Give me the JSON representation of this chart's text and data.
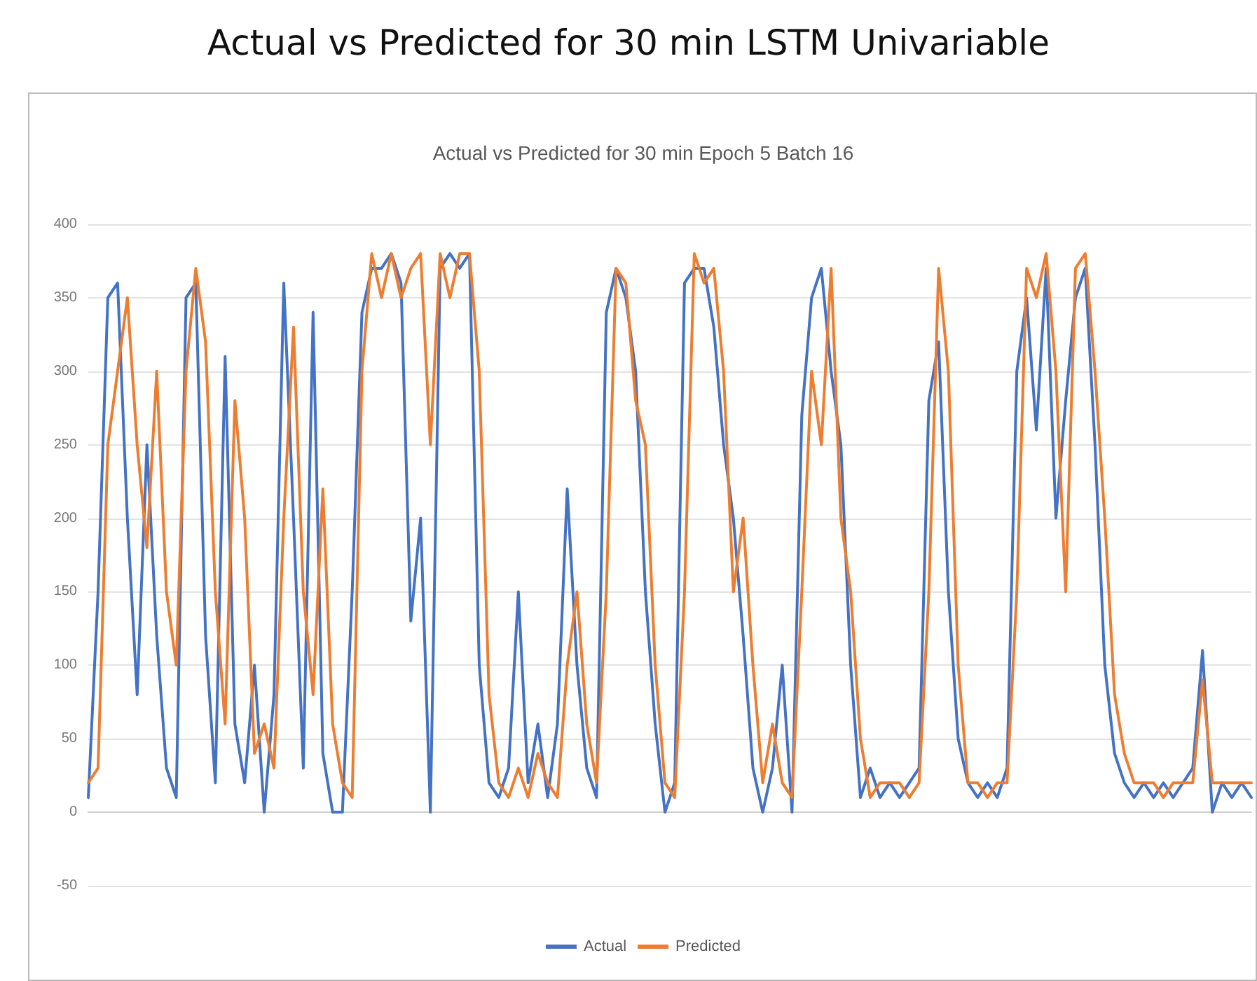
{
  "chart_data": {
    "type": "line",
    "title": "Actual vs Predicted for 30 min LSTM Univariable",
    "subtitle": "Actual vs Predicted for 30 min Epoch 5 Batch 16",
    "categories": [
      null,
      null,
      null,
      null,
      null,
      null,
      null,
      null,
      null,
      null,
      null,
      null,
      null,
      null,
      null,
      null,
      null,
      null,
      null,
      null,
      null,
      null,
      null,
      null,
      null,
      null,
      null,
      null,
      null,
      null,
      null,
      null,
      null,
      null,
      null,
      null,
      null,
      null,
      null,
      null,
      null,
      null,
      null,
      null,
      null,
      null,
      null,
      null,
      null,
      null,
      null,
      null,
      null,
      null,
      null,
      null,
      null,
      null,
      null,
      null,
      null,
      null,
      null,
      null,
      null,
      null,
      null,
      null,
      null,
      null,
      null,
      null,
      null,
      null,
      null,
      null,
      null,
      null,
      null,
      null,
      null,
      null,
      null,
      null,
      null,
      null,
      null,
      null,
      null,
      null,
      null,
      null,
      null,
      null,
      null,
      null,
      null,
      null,
      null,
      null,
      null,
      null,
      null,
      null,
      null,
      null,
      null,
      null,
      null,
      null,
      null,
      null,
      null,
      null,
      null,
      null,
      null,
      null,
      null,
      null
    ],
    "series": [
      {
        "name": "Actual",
        "color": "#4472c4",
        "values": [
          10,
          150,
          350,
          360,
          200,
          80,
          250,
          120,
          30,
          10,
          350,
          360,
          120,
          20,
          310,
          60,
          20,
          100,
          0,
          80,
          360,
          200,
          30,
          340,
          40,
          0,
          0,
          150,
          340,
          370,
          370,
          380,
          360,
          130,
          200,
          0,
          370,
          380,
          370,
          380,
          100,
          20,
          10,
          30,
          150,
          20,
          60,
          10,
          60,
          220,
          100,
          30,
          10,
          340,
          370,
          350,
          300,
          150,
          60,
          0,
          20,
          360,
          370,
          370,
          330,
          250,
          200,
          120,
          30,
          0,
          30,
          100,
          0,
          270,
          350,
          370,
          300,
          250,
          100,
          10,
          30,
          10,
          20,
          10,
          20,
          30,
          280,
          320,
          150,
          50,
          20,
          10,
          20,
          10,
          30,
          300,
          350,
          260,
          370,
          200,
          280,
          350,
          370,
          250,
          100,
          40,
          20,
          10,
          20,
          10,
          20,
          10,
          20,
          30,
          110,
          0,
          20,
          10,
          20,
          10
        ]
      },
      {
        "name": "Predicted",
        "color": "#ed7d31",
        "values": [
          20,
          30,
          250,
          300,
          350,
          250,
          180,
          300,
          150,
          100,
          300,
          370,
          320,
          150,
          60,
          280,
          200,
          40,
          60,
          30,
          200,
          330,
          150,
          80,
          220,
          60,
          20,
          10,
          300,
          380,
          350,
          380,
          350,
          370,
          380,
          250,
          380,
          350,
          380,
          380,
          300,
          80,
          20,
          10,
          30,
          10,
          40,
          20,
          10,
          100,
          150,
          60,
          20,
          150,
          370,
          360,
          280,
          250,
          100,
          20,
          10,
          150,
          380,
          360,
          370,
          300,
          150,
          200,
          100,
          20,
          60,
          20,
          10,
          150,
          300,
          250,
          370,
          200,
          150,
          50,
          10,
          20,
          20,
          20,
          10,
          20,
          150,
          370,
          300,
          100,
          20,
          20,
          10,
          20,
          20,
          150,
          370,
          350,
          380,
          300,
          150,
          370,
          380,
          300,
          200,
          80,
          40,
          20,
          20,
          20,
          10,
          20,
          20,
          20,
          90,
          20,
          20,
          20,
          20,
          20
        ]
      }
    ],
    "ylim": [
      -50,
      400
    ],
    "yticks": [
      -50,
      0,
      50,
      100,
      150,
      200,
      250,
      300,
      350,
      400
    ],
    "grid": "y",
    "legend": "bottom",
    "marker": "none",
    "line_style": "solid"
  }
}
